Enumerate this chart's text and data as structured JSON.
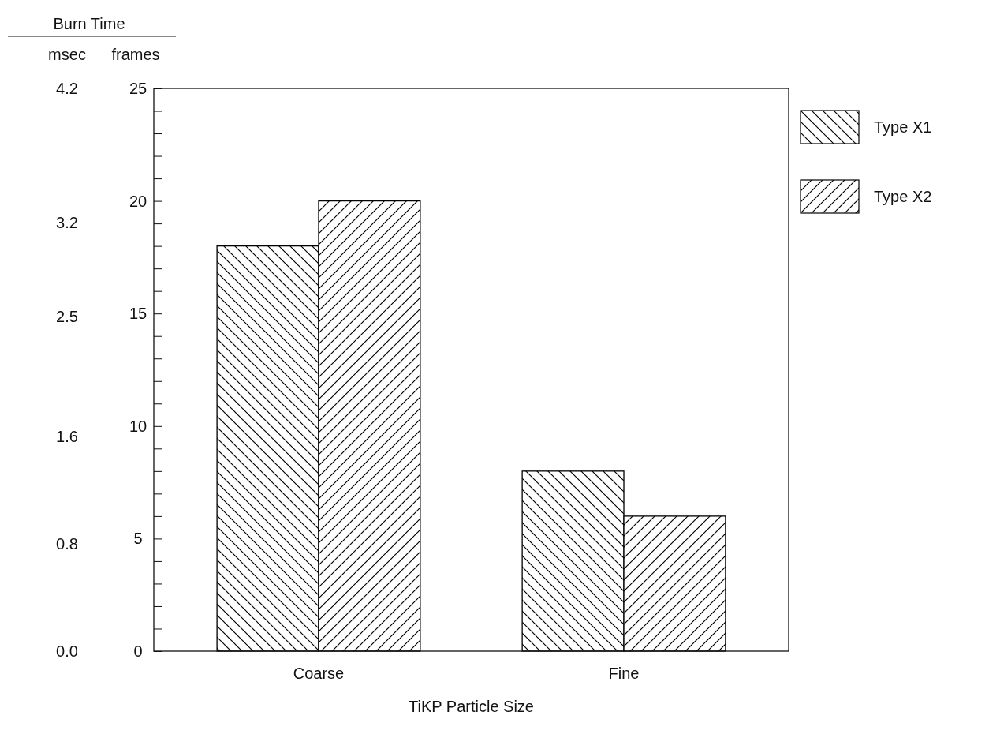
{
  "chart_data": {
    "type": "bar",
    "title": "Burn Time",
    "xlabel": "TiKP Particle Size",
    "ylabel": "frames",
    "y2label": "msec",
    "categories": [
      "Coarse",
      "Fine"
    ],
    "series": [
      {
        "name": "Type X1",
        "color": "#000000",
        "values": [
          18,
          8
        ]
      },
      {
        "name": "Type X2",
        "color": "#000000",
        "values": [
          20,
          6
        ]
      }
    ],
    "ylim": [
      0,
      25
    ],
    "yticks": [
      0,
      {
        "value": 1,
        "label": null
      },
      {
        "value": 2,
        "label": null
      },
      {
        "value": 3,
        "label": null
      },
      {
        "value": 4,
        "label": null
      },
      5,
      {
        "value": 6,
        "label": null
      },
      {
        "value": 7,
        "label": null
      },
      {
        "value": 8,
        "label": null
      },
      {
        "value": 9,
        "label": null
      },
      10,
      {
        "value": 11,
        "label": null
      },
      {
        "value": 12,
        "label": null
      },
      {
        "value": 13,
        "label": null
      },
      {
        "value": 14,
        "label": null
      },
      15,
      {
        "value": 16,
        "label": null
      },
      {
        "value": 17,
        "label": null
      },
      {
        "value": 18,
        "label": null
      },
      {
        "value": 19,
        "label": null
      },
      20,
      {
        "value": 21,
        "label": null
      },
      {
        "value": 22,
        "label": null
      },
      {
        "value": 23,
        "label": null
      },
      {
        "value": 24,
        "label": null
      },
      25
    ],
    "y2lim": [
      0,
      4.2
    ],
    "y2ticks": [
      {
        "value": 0,
        "label": "0.0"
      },
      {
        "value": 0.8,
        "label": "0.8"
      },
      {
        "value": 1.6,
        "label": "1.6"
      },
      {
        "value": 2.5,
        "label": "2.5"
      },
      {
        "value": 3.2,
        "label": "3.2"
      },
      {
        "value": 4.2,
        "label": "4.2"
      }
    ],
    "legend": "right",
    "grid": false
  }
}
